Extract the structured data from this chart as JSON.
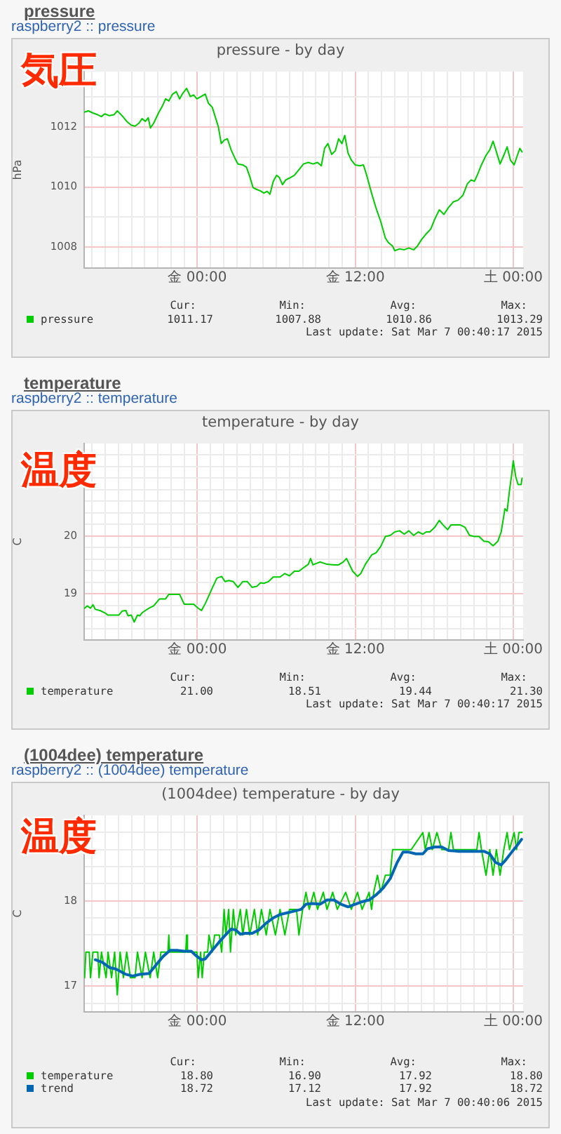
{
  "chart_data": [
    {
      "type": "line",
      "title": "pressure",
      "subtitle": "raspberry2 :: pressure",
      "ylabel": "hPa",
      "annotations": [
        "pressure - by day",
        "気圧",
        "Cur:",
        "Min:",
        "Avg:",
        "Max:",
        "1011.17",
        "1007.88",
        "1010.86",
        "1013.29",
        "Last update: Sat Mar 7 00:40:17 2015"
      ],
      "series": [
        {
          "name": "pressure",
          "color": "#00cc00",
          "x": [
            "2015-03-05T15:26",
            "2015-03-05T15:43",
            "2015-03-05T16:04",
            "2015-03-05T16:26",
            "2015-03-05T16:43",
            "2015-03-05T16:58",
            "2015-03-05T17:19",
            "2015-03-05T17:40",
            "2015-03-05T17:55",
            "2015-03-05T18:17",
            "2015-03-05T18:38",
            "2015-03-05T18:59",
            "2015-03-05T19:16",
            "2015-03-05T19:34",
            "2015-03-05T19:48",
            "2015-03-05T20:03",
            "2015-03-05T20:16",
            "2015-03-05T20:26",
            "2015-03-05T20:41",
            "2015-03-05T21:03",
            "2015-03-05T21:20",
            "2015-03-05T21:35",
            "2015-03-05T21:50",
            "2015-03-05T22:07",
            "2015-03-05T22:24",
            "2015-03-05T22:39",
            "2015-03-05T22:54",
            "2015-03-05T23:11",
            "2015-03-05T23:28",
            "2015-03-05T23:43",
            "2015-03-05T23:58",
            "2015-03-06T00:15",
            "2015-03-06T00:36",
            "2015-03-06T00:51",
            "2015-03-06T01:08",
            "2015-03-06T01:23",
            "2015-03-06T01:36",
            "2015-03-06T01:49",
            "2015-03-06T02:02",
            "2015-03-06T02:17",
            "2015-03-06T02:34",
            "2015-03-06T02:50",
            "2015-03-06T03:05",
            "2015-03-06T03:27",
            "2015-03-06T03:44",
            "2015-03-06T03:59",
            "2015-03-06T04:14",
            "2015-03-06T04:31",
            "2015-03-06T04:48",
            "2015-03-06T05:03",
            "2015-03-06T05:18",
            "2015-03-06T05:31",
            "2015-03-06T05:46",
            "2015-03-06T06:01",
            "2015-03-06T06:13",
            "2015-03-06T06:28",
            "2015-03-06T06:43",
            "2015-03-06T07:00",
            "2015-03-06T07:22",
            "2015-03-06T07:43",
            "2015-03-06T08:04",
            "2015-03-06T08:26",
            "2015-03-06T08:47",
            "2015-03-06T09:08",
            "2015-03-06T09:25",
            "2015-03-06T09:40",
            "2015-03-06T09:55",
            "2015-03-06T10:12",
            "2015-03-06T10:29",
            "2015-03-06T10:44",
            "2015-03-06T10:59",
            "2015-03-06T11:12",
            "2015-03-06T11:27",
            "2015-03-06T11:42",
            "2015-03-06T11:59",
            "2015-03-06T12:20",
            "2015-03-06T12:37",
            "2015-03-06T12:52",
            "2015-03-06T13:14",
            "2015-03-06T13:35",
            "2015-03-06T13:56",
            "2015-03-06T14:17",
            "2015-03-06T14:32",
            "2015-03-06T14:50",
            "2015-03-06T15:00",
            "2015-03-06T15:22",
            "2015-03-06T15:43",
            "2015-03-06T16:04",
            "2015-03-06T16:26",
            "2015-03-06T16:43",
            "2015-03-06T17:02",
            "2015-03-06T17:23",
            "2015-03-06T17:44",
            "2015-03-06T18:02",
            "2015-03-06T18:23",
            "2015-03-06T18:44",
            "2015-03-06T19:05",
            "2015-03-06T19:27",
            "2015-03-06T19:48",
            "2015-03-06T20:10",
            "2015-03-06T20:31",
            "2015-03-06T20:48",
            "2015-03-06T21:03",
            "2015-03-06T21:18",
            "2015-03-06T21:35",
            "2015-03-06T21:56",
            "2015-03-06T22:13",
            "2015-03-06T22:28",
            "2015-03-06T22:43",
            "2015-03-06T23:00",
            "2015-03-06T23:17",
            "2015-03-06T23:32",
            "2015-03-06T23:47",
            "2015-03-07T00:04",
            "2015-03-07T00:17",
            "2015-03-07T00:30",
            "2015-03-07T00:40"
          ],
          "values": [
            1012.5,
            1012.54,
            1012.47,
            1012.41,
            1012.35,
            1012.44,
            1012.38,
            1012.41,
            1012.54,
            1012.38,
            1012.19,
            1012.06,
            1012.03,
            1012.13,
            1012.28,
            1012.19,
            1012.31,
            1011.97,
            1012.13,
            1012.47,
            1012.69,
            1012.94,
            1012.87,
            1013.1,
            1013.18,
            1012.94,
            1013.13,
            1013.29,
            1013.02,
            1013.07,
            1012.94,
            1013.01,
            1013.1,
            1012.79,
            1012.66,
            1012.31,
            1012,
            1011.45,
            1011.56,
            1011.61,
            1011.24,
            1010.98,
            1010.77,
            1010.74,
            1010.66,
            1010.35,
            1009.98,
            1009.92,
            1009.87,
            1009.8,
            1009.86,
            1009.76,
            1010.19,
            1010.39,
            1010.33,
            1010.08,
            1010.24,
            1010.3,
            1010.39,
            1010.58,
            1010.77,
            1010.82,
            1010.77,
            1010.82,
            1010.71,
            1011.29,
            1011.45,
            1011.09,
            1011.21,
            1011.61,
            1011.45,
            1011.72,
            1011.13,
            1010.9,
            1010.74,
            1010.71,
            1010.74,
            1010.39,
            1009.8,
            1009.29,
            1008.85,
            1008.3,
            1008.14,
            1008.03,
            1007.88,
            1007.94,
            1007.91,
            1007.97,
            1007.91,
            1008.03,
            1008.25,
            1008.44,
            1008.6,
            1008.93,
            1009.24,
            1009.09,
            1009.32,
            1009.51,
            1009.56,
            1009.72,
            1010.11,
            1010.24,
            1010.19,
            1010.43,
            1010.74,
            1011.06,
            1011.24,
            1011.53,
            1011.18,
            1010.77,
            1011.06,
            1011.34,
            1010.9,
            1010.74,
            1011.02,
            1011.29,
            1011.17
          ]
        }
      ],
      "xlim": [
        "2015-03-05T15:24",
        "2015-03-07T00:45"
      ],
      "xticks": [
        {
          "value": "2015-03-05T16:00",
          "label": null
        },
        {
          "value": "2015-03-05T17:00",
          "label": null
        },
        {
          "value": "2015-03-05T18:00",
          "label": null
        },
        {
          "value": "2015-03-05T19:00",
          "label": null
        },
        {
          "value": "2015-03-05T20:00",
          "label": null
        },
        {
          "value": "2015-03-05T21:00",
          "label": null
        },
        {
          "value": "2015-03-05T22:00",
          "label": null
        },
        {
          "value": "2015-03-05T23:00",
          "label": null
        },
        {
          "value": "2015-03-06T00:00",
          "label": "金 00:00"
        },
        {
          "value": "2015-03-06T01:00",
          "label": null
        },
        {
          "value": "2015-03-06T02:00",
          "label": null
        },
        {
          "value": "2015-03-06T03:00",
          "label": null
        },
        {
          "value": "2015-03-06T04:00",
          "label": null
        },
        {
          "value": "2015-03-06T05:00",
          "label": null
        },
        {
          "value": "2015-03-06T06:00",
          "label": null
        },
        {
          "value": "2015-03-06T07:00",
          "label": null
        },
        {
          "value": "2015-03-06T08:00",
          "label": null
        },
        {
          "value": "2015-03-06T09:00",
          "label": null
        },
        {
          "value": "2015-03-06T10:00",
          "label": null
        },
        {
          "value": "2015-03-06T11:00",
          "label": null
        },
        {
          "value": "2015-03-06T12:00",
          "label": "金 12:00"
        },
        {
          "value": "2015-03-06T13:00",
          "label": null
        },
        {
          "value": "2015-03-06T14:00",
          "label": null
        },
        {
          "value": "2015-03-06T15:00",
          "label": null
        },
        {
          "value": "2015-03-06T16:00",
          "label": null
        },
        {
          "value": "2015-03-06T17:00",
          "label": null
        },
        {
          "value": "2015-03-06T18:00",
          "label": null
        },
        {
          "value": "2015-03-06T19:00",
          "label": null
        },
        {
          "value": "2015-03-06T20:00",
          "label": null
        },
        {
          "value": "2015-03-06T21:00",
          "label": null
        },
        {
          "value": "2015-03-06T22:00",
          "label": null
        },
        {
          "value": "2015-03-06T23:00",
          "label": null
        },
        {
          "value": "2015-03-07T00:00",
          "label": "土 00:00"
        }
      ],
      "ylim": [
        1007.3,
        1013.85
      ],
      "yticks": [
        1008,
        {
          "value": 1009,
          "label": null
        },
        1010,
        {
          "value": 1011,
          "label": null
        },
        1012,
        {
          "value": 1013,
          "label": null
        }
      ],
      "grid": true,
      "legend": "bottom"
    },
    {
      "type": "line",
      "title": "temperature",
      "subtitle": "raspberry2 :: temperature",
      "ylabel": "C",
      "annotations": [
        "temperature - by day",
        "温度",
        "Cur:",
        "Min:",
        "Avg:",
        "Max:",
        "21.00",
        "18.51",
        "19.44",
        "21.30",
        "Last update: Sat Mar 7 00:40:17 2015"
      ],
      "series": [
        {
          "name": "temperature",
          "color": "#00cc00",
          "x": [
            "2015-03-05T15:26",
            "2015-03-05T15:38",
            "2015-03-05T15:53",
            "2015-03-05T16:04",
            "2015-03-05T16:15",
            "2015-03-05T16:36",
            "2015-03-05T16:58",
            "2015-03-05T17:13",
            "2015-03-05T17:40",
            "2015-03-05T18:02",
            "2015-03-05T18:17",
            "2015-03-05T18:34",
            "2015-03-05T18:44",
            "2015-03-05T18:59",
            "2015-03-05T19:12",
            "2015-03-05T19:27",
            "2015-03-05T19:38",
            "2015-03-05T19:48",
            "2015-03-05T20:03",
            "2015-03-05T20:20",
            "2015-03-05T20:41",
            "2015-03-05T21:07",
            "2015-03-05T21:35",
            "2015-03-05T21:50",
            "2015-03-05T22:17",
            "2015-03-05T22:39",
            "2015-03-05T23:00",
            "2015-03-05T23:22",
            "2015-03-05T23:43",
            "2015-03-06T00:04",
            "2015-03-06T00:19",
            "2015-03-06T00:36",
            "2015-03-06T00:53",
            "2015-03-06T01:08",
            "2015-03-06T01:29",
            "2015-03-06T01:51",
            "2015-03-06T02:06",
            "2015-03-06T02:23",
            "2015-03-06T02:44",
            "2015-03-06T03:05",
            "2015-03-06T03:27",
            "2015-03-06T03:48",
            "2015-03-06T04:10",
            "2015-03-06T04:31",
            "2015-03-06T04:48",
            "2015-03-06T05:03",
            "2015-03-06T05:24",
            "2015-03-06T05:46",
            "2015-03-06T06:17",
            "2015-03-06T06:39",
            "2015-03-06T07:00",
            "2015-03-06T07:22",
            "2015-03-06T07:43",
            "2015-03-06T08:04",
            "2015-03-06T08:26",
            "2015-03-06T08:36",
            "2015-03-06T08:47",
            "2015-03-06T09:19",
            "2015-03-06T09:51",
            "2015-03-06T10:23",
            "2015-03-06T10:44",
            "2015-03-06T11:05",
            "2015-03-06T11:20",
            "2015-03-06T11:34",
            "2015-03-06T11:48",
            "2015-03-06T12:10",
            "2015-03-06T12:25",
            "2015-03-06T12:46",
            "2015-03-06T13:14",
            "2015-03-06T13:35",
            "2015-03-06T13:56",
            "2015-03-06T14:17",
            "2015-03-06T14:39",
            "2015-03-06T15:00",
            "2015-03-06T15:22",
            "2015-03-06T15:43",
            "2015-03-06T16:04",
            "2015-03-06T16:26",
            "2015-03-06T16:47",
            "2015-03-06T17:08",
            "2015-03-06T17:23",
            "2015-03-06T17:40",
            "2015-03-06T18:02",
            "2015-03-06T18:23",
            "2015-03-06T18:40",
            "2015-03-06T19:01",
            "2015-03-06T19:16",
            "2015-03-06T19:38",
            "2015-03-06T19:59",
            "2015-03-06T20:20",
            "2015-03-06T20:41",
            "2015-03-06T21:03",
            "2015-03-06T21:24",
            "2015-03-06T21:46",
            "2015-03-06T22:07",
            "2015-03-06T22:28",
            "2015-03-06T22:50",
            "2015-03-06T23:05",
            "2015-03-06T23:22",
            "2015-03-06T23:32",
            "2015-03-06T23:43",
            "2015-03-06T23:53",
            "2015-03-07T00:00",
            "2015-03-07T00:11",
            "2015-03-07T00:22",
            "2015-03-07T00:36",
            "2015-03-07T00:40"
          ],
          "values": [
            18.75,
            18.79,
            18.75,
            18.81,
            18.73,
            18.71,
            18.67,
            18.63,
            18.63,
            18.63,
            18.7,
            18.71,
            18.62,
            18.63,
            18.51,
            18.63,
            18.62,
            18.67,
            18.71,
            18.75,
            18.79,
            18.91,
            18.91,
            18.99,
            18.99,
            18.99,
            18.82,
            18.82,
            18.82,
            18.75,
            18.71,
            18.83,
            18.97,
            19.1,
            19.27,
            19.3,
            19.21,
            19.23,
            19.21,
            19.11,
            19.21,
            19.21,
            19.11,
            19.13,
            19.19,
            19.18,
            19.21,
            19.29,
            19.29,
            19.35,
            19.31,
            19.39,
            19.39,
            19.45,
            19.51,
            19.61,
            19.5,
            19.55,
            19.51,
            19.5,
            19.5,
            19.55,
            19.61,
            19.5,
            19.39,
            19.3,
            19.35,
            19.51,
            19.67,
            19.71,
            19.82,
            19.99,
            20.01,
            20.07,
            20.09,
            20.03,
            20.09,
            20.01,
            20.07,
            20.03,
            20.07,
            20.07,
            20.15,
            20.27,
            20.19,
            20.11,
            20.19,
            20.19,
            20.19,
            20.15,
            20.01,
            19.99,
            19.99,
            19.91,
            19.9,
            19.83,
            19.91,
            20.07,
            20.47,
            20.43,
            20.79,
            21.07,
            21.3,
            21.03,
            20.89,
            20.89,
            21
          ]
        }
      ],
      "xlim": [
        "2015-03-05T15:24",
        "2015-03-07T00:45"
      ],
      "xticks": [
        {
          "value": "2015-03-05T16:00",
          "label": null
        },
        {
          "value": "2015-03-05T17:00",
          "label": null
        },
        {
          "value": "2015-03-05T18:00",
          "label": null
        },
        {
          "value": "2015-03-05T19:00",
          "label": null
        },
        {
          "value": "2015-03-05T20:00",
          "label": null
        },
        {
          "value": "2015-03-05T21:00",
          "label": null
        },
        {
          "value": "2015-03-05T22:00",
          "label": null
        },
        {
          "value": "2015-03-05T23:00",
          "label": null
        },
        {
          "value": "2015-03-06T00:00",
          "label": "金 00:00"
        },
        {
          "value": "2015-03-06T01:00",
          "label": null
        },
        {
          "value": "2015-03-06T02:00",
          "label": null
        },
        {
          "value": "2015-03-06T03:00",
          "label": null
        },
        {
          "value": "2015-03-06T04:00",
          "label": null
        },
        {
          "value": "2015-03-06T05:00",
          "label": null
        },
        {
          "value": "2015-03-06T06:00",
          "label": null
        },
        {
          "value": "2015-03-06T07:00",
          "label": null
        },
        {
          "value": "2015-03-06T08:00",
          "label": null
        },
        {
          "value": "2015-03-06T09:00",
          "label": null
        },
        {
          "value": "2015-03-06T10:00",
          "label": null
        },
        {
          "value": "2015-03-06T11:00",
          "label": null
        },
        {
          "value": "2015-03-06T12:00",
          "label": "金 12:00"
        },
        {
          "value": "2015-03-06T13:00",
          "label": null
        },
        {
          "value": "2015-03-06T14:00",
          "label": null
        },
        {
          "value": "2015-03-06T15:00",
          "label": null
        },
        {
          "value": "2015-03-06T16:00",
          "label": null
        },
        {
          "value": "2015-03-06T17:00",
          "label": null
        },
        {
          "value": "2015-03-06T18:00",
          "label": null
        },
        {
          "value": "2015-03-06T19:00",
          "label": null
        },
        {
          "value": "2015-03-06T20:00",
          "label": null
        },
        {
          "value": "2015-03-06T21:00",
          "label": null
        },
        {
          "value": "2015-03-06T22:00",
          "label": null
        },
        {
          "value": "2015-03-06T23:00",
          "label": null
        },
        {
          "value": "2015-03-07T00:00",
          "label": "土 00:00"
        }
      ],
      "ylim": [
        18.2,
        21.6
      ],
      "yticks": [
        {
          "value": 18.4,
          "label": null
        },
        {
          "value": 18.6,
          "label": null
        },
        {
          "value": 18.8,
          "label": null
        },
        19,
        {
          "value": 19.2,
          "label": null
        },
        {
          "value": 19.4,
          "label": null
        },
        {
          "value": 19.6,
          "label": null
        },
        {
          "value": 19.8,
          "label": null
        },
        20,
        {
          "value": 20.2,
          "label": null
        },
        {
          "value": 20.4,
          "label": null
        },
        {
          "value": 20.6,
          "label": null
        },
        {
          "value": 20.8,
          "label": null
        },
        {
          "value": 21,
          "label": null
        },
        {
          "value": 21.2,
          "label": null
        },
        {
          "value": 21.4,
          "label": null
        }
      ],
      "grid": true,
      "legend": "bottom"
    },
    {
      "type": "line",
      "title": "(1004dee) temperature",
      "subtitle": "raspberry2 :: (1004dee) temperature",
      "ylabel": "C",
      "annotations": [
        "(1004dee) temperature - by day",
        "温度",
        "Cur:",
        "Min:",
        "Avg:",
        "Max:",
        "18.80",
        "16.90",
        "17.92",
        "18.80",
        "18.72",
        "17.12",
        "17.92",
        "18.72",
        "Last update: Sat Mar 7 00:40:06 2015"
      ],
      "series": [
        {
          "name": "temperature",
          "color": "#00cc00",
          "x": [
            "2015-03-05T15:26",
            "2015-03-05T15:32",
            "2015-03-05T15:47",
            "2015-03-05T15:53",
            "2015-03-05T16:04",
            "2015-03-05T16:26",
            "2015-03-05T16:32",
            "2015-03-05T16:43",
            "2015-03-05T17:04",
            "2015-03-05T17:13",
            "2015-03-05T17:29",
            "2015-03-05T17:43",
            "2015-03-05T17:55",
            "2015-03-05T18:08",
            "2015-03-05T18:23",
            "2015-03-05T18:38",
            "2015-03-05T18:55",
            "2015-03-05T19:16",
            "2015-03-05T19:27",
            "2015-03-05T19:48",
            "2015-03-05T20:03",
            "2015-03-05T20:25",
            "2015-03-05T20:41",
            "2015-03-05T20:59",
            "2015-03-05T21:14",
            "2015-03-05T21:46",
            "2015-03-05T21:50",
            "2015-03-05T21:54",
            "2015-03-05T23:07",
            "2015-03-05T23:11",
            "2015-03-05T23:15",
            "2015-03-05T23:58",
            "2015-03-06T00:04",
            "2015-03-06T00:15",
            "2015-03-06T00:22",
            "2015-03-06T00:32",
            "2015-03-06T00:47",
            "2015-03-06T00:53",
            "2015-03-06T01:08",
            "2015-03-06T01:19",
            "2015-03-06T01:40",
            "2015-03-06T01:51",
            "2015-03-06T02:02",
            "2015-03-06T02:10",
            "2015-03-06T02:23",
            "2015-03-06T02:31",
            "2015-03-06T02:44",
            "2015-03-06T02:55",
            "2015-03-06T03:16",
            "2015-03-06T03:27",
            "2015-03-06T03:44",
            "2015-03-06T03:59",
            "2015-03-06T04:20",
            "2015-03-06T04:35",
            "2015-03-06T04:52",
            "2015-03-06T05:14",
            "2015-03-06T05:31",
            "2015-03-06T05:56",
            "2015-03-06T06:17",
            "2015-03-06T06:39",
            "2015-03-06T07:00",
            "2015-03-06T07:32",
            "2015-03-06T07:43",
            "2015-03-06T08:00",
            "2015-03-06T08:15",
            "2015-03-06T08:30",
            "2015-03-06T08:51",
            "2015-03-06T09:08",
            "2015-03-06T09:34",
            "2015-03-06T09:51",
            "2015-03-06T10:17",
            "2015-03-06T10:38",
            "2015-03-06T11:16",
            "2015-03-06T11:42",
            "2015-03-06T12:10",
            "2015-03-06T12:31",
            "2015-03-06T13:03",
            "2015-03-06T13:14",
            "2015-03-06T13:24",
            "2015-03-06T13:41",
            "2015-03-06T13:56",
            "2015-03-06T14:17",
            "2015-03-06T14:39",
            "2015-03-06T14:50",
            "2015-03-06T16:15",
            "2015-03-06T17:08",
            "2015-03-06T17:19",
            "2015-03-06T17:36",
            "2015-03-06T17:51",
            "2015-03-06T18:12",
            "2015-03-06T18:34",
            "2015-03-06T19:05",
            "2015-03-06T19:16",
            "2015-03-06T19:27",
            "2015-03-06T21:14",
            "2015-03-06T21:24",
            "2015-03-06T21:35",
            "2015-03-06T21:56",
            "2015-03-06T22:13",
            "2015-03-06T22:28",
            "2015-03-06T22:43",
            "2015-03-06T23:00",
            "2015-03-06T23:17",
            "2015-03-06T23:32",
            "2015-03-06T23:43",
            "2015-03-07T00:04",
            "2015-03-07T00:15",
            "2015-03-07T00:26",
            "2015-03-07T00:40"
          ],
          "values": [
            17.1,
            17.4,
            17.4,
            17.1,
            17.4,
            17.4,
            17.1,
            17.4,
            17.1,
            17.4,
            17.1,
            17.4,
            16.9,
            17.4,
            17.1,
            17.4,
            17.1,
            17.1,
            17.4,
            17.1,
            17.4,
            17.1,
            17.4,
            17.1,
            17.4,
            17.4,
            17.6,
            17.4,
            17.4,
            17.6,
            17.4,
            17.4,
            17.1,
            17.4,
            17.1,
            17.4,
            17.4,
            17.6,
            17.4,
            17.6,
            17.6,
            17.4,
            17.9,
            17.6,
            17.9,
            17.4,
            17.9,
            17.6,
            17.9,
            17.6,
            17.9,
            17.6,
            17.9,
            17.6,
            17.9,
            17.6,
            17.9,
            17.6,
            17.9,
            17.6,
            17.9,
            17.9,
            17.6,
            17.9,
            18.1,
            17.9,
            18.1,
            17.9,
            18.1,
            17.9,
            18.1,
            17.9,
            18.1,
            17.9,
            18.1,
            17.9,
            18.1,
            17.9,
            18.1,
            18.3,
            18.1,
            18.3,
            18.3,
            18.6,
            18.6,
            18.8,
            18.6,
            18.8,
            18.6,
            18.8,
            18.6,
            18.6,
            18.8,
            18.6,
            18.6,
            18.8,
            18.6,
            18.3,
            18.6,
            18.3,
            18.6,
            18.3,
            18.6,
            18.8,
            18.6,
            18.8,
            18.6,
            18.8,
            18.8
          ]
        },
        {
          "name": "trend",
          "color": "#0066b3",
          "x": [
            "2015-03-05T16:15",
            "2015-03-05T16:47",
            "2015-03-05T17:19",
            "2015-03-05T17:51",
            "2015-03-05T18:12",
            "2015-03-05T18:34",
            "2015-03-05T19:05",
            "2015-03-05T19:38",
            "2015-03-05T20:20",
            "2015-03-05T20:52",
            "2015-03-05T21:24",
            "2015-03-05T21:56",
            "2015-03-05T22:28",
            "2015-03-05T23:00",
            "2015-03-05T23:32",
            "2015-03-05T23:53",
            "2015-03-06T00:19",
            "2015-03-06T00:36",
            "2015-03-06T01:08",
            "2015-03-06T01:40",
            "2015-03-06T02:12",
            "2015-03-06T02:34",
            "2015-03-06T02:55",
            "2015-03-06T03:16",
            "2015-03-06T03:38",
            "2015-03-06T04:10",
            "2015-03-06T04:41",
            "2015-03-06T05:14",
            "2015-03-06T05:46",
            "2015-03-06T06:17",
            "2015-03-06T06:50",
            "2015-03-06T07:22",
            "2015-03-06T07:53",
            "2015-03-06T08:15",
            "2015-03-06T08:47",
            "2015-03-06T09:19",
            "2015-03-06T09:51",
            "2015-03-06T10:23",
            "2015-03-06T10:55",
            "2015-03-06T11:27",
            "2015-03-06T11:59",
            "2015-03-06T12:31",
            "2015-03-06T13:03",
            "2015-03-06T13:35",
            "2015-03-06T14:07",
            "2015-03-06T14:39",
            "2015-03-06T15:11",
            "2015-03-06T15:37",
            "2015-03-06T16:04",
            "2015-03-06T16:36",
            "2015-03-06T17:08",
            "2015-03-06T17:29",
            "2015-03-06T18:02",
            "2015-03-06T18:34",
            "2015-03-06T19:05",
            "2015-03-06T19:48",
            "2015-03-06T20:31",
            "2015-03-06T21:14",
            "2015-03-06T21:46",
            "2015-03-06T22:13",
            "2015-03-06T22:39",
            "2015-03-06T23:05",
            "2015-03-06T23:26",
            "2015-03-06T23:53",
            "2015-03-07T00:15",
            "2015-03-07T00:38"
          ],
          "values": [
            17.31,
            17.28,
            17.22,
            17.2,
            17.17,
            17.14,
            17.12,
            17.14,
            17.15,
            17.25,
            17.35,
            17.42,
            17.42,
            17.41,
            17.41,
            17.36,
            17.31,
            17.32,
            17.42,
            17.52,
            17.61,
            17.67,
            17.66,
            17.61,
            17.62,
            17.62,
            17.66,
            17.74,
            17.8,
            17.84,
            17.86,
            17.88,
            17.9,
            17.96,
            17.97,
            17.96,
            18.01,
            18.01,
            17.96,
            17.93,
            17.96,
            17.99,
            18.01,
            18.07,
            18.15,
            18.26,
            18.45,
            18.57,
            18.57,
            18.55,
            18.55,
            18.61,
            18.63,
            18.63,
            18.59,
            18.58,
            18.58,
            18.58,
            18.58,
            18.55,
            18.45,
            18.42,
            18.48,
            18.57,
            18.64,
            18.72
          ]
        }
      ],
      "xlim": [
        "2015-03-05T15:24",
        "2015-03-07T00:45"
      ],
      "xticks": [
        {
          "value": "2015-03-05T16:00",
          "label": null
        },
        {
          "value": "2015-03-05T17:00",
          "label": null
        },
        {
          "value": "2015-03-05T18:00",
          "label": null
        },
        {
          "value": "2015-03-05T19:00",
          "label": null
        },
        {
          "value": "2015-03-05T20:00",
          "label": null
        },
        {
          "value": "2015-03-05T21:00",
          "label": null
        },
        {
          "value": "2015-03-05T22:00",
          "label": null
        },
        {
          "value": "2015-03-05T23:00",
          "label": null
        },
        {
          "value": "2015-03-06T00:00",
          "label": "金 00:00"
        },
        {
          "value": "2015-03-06T01:00",
          "label": null
        },
        {
          "value": "2015-03-06T02:00",
          "label": null
        },
        {
          "value": "2015-03-06T03:00",
          "label": null
        },
        {
          "value": "2015-03-06T04:00",
          "label": null
        },
        {
          "value": "2015-03-06T05:00",
          "label": null
        },
        {
          "value": "2015-03-06T06:00",
          "label": null
        },
        {
          "value": "2015-03-06T07:00",
          "label": null
        },
        {
          "value": "2015-03-06T08:00",
          "label": null
        },
        {
          "value": "2015-03-06T09:00",
          "label": null
        },
        {
          "value": "2015-03-06T10:00",
          "label": null
        },
        {
          "value": "2015-03-06T11:00",
          "label": null
        },
        {
          "value": "2015-03-06T12:00",
          "label": "金 12:00"
        },
        {
          "value": "2015-03-06T13:00",
          "label": null
        },
        {
          "value": "2015-03-06T14:00",
          "label": null
        },
        {
          "value": "2015-03-06T15:00",
          "label": null
        },
        {
          "value": "2015-03-06T16:00",
          "label": null
        },
        {
          "value": "2015-03-06T17:00",
          "label": null
        },
        {
          "value": "2015-03-06T18:00",
          "label": null
        },
        {
          "value": "2015-03-06T19:00",
          "label": null
        },
        {
          "value": "2015-03-06T20:00",
          "label": null
        },
        {
          "value": "2015-03-06T21:00",
          "label": null
        },
        {
          "value": "2015-03-06T22:00",
          "label": null
        },
        {
          "value": "2015-03-06T23:00",
          "label": null
        },
        {
          "value": "2015-03-07T00:00",
          "label": "土 00:00"
        }
      ],
      "ylim": [
        16.7,
        19.0
      ],
      "yticks": [
        {
          "value": 16.8,
          "label": null
        },
        17,
        {
          "value": 17.2,
          "label": null
        },
        {
          "value": 17.4,
          "label": null
        },
        {
          "value": 17.6,
          "label": null
        },
        {
          "value": 17.8,
          "label": null
        },
        18,
        {
          "value": 18.2,
          "label": null
        },
        {
          "value": 18.4,
          "label": null
        },
        {
          "value": 18.6,
          "label": null
        },
        {
          "value": 18.8,
          "label": null
        }
      ],
      "grid": true,
      "legend": "bottom"
    }
  ]
}
